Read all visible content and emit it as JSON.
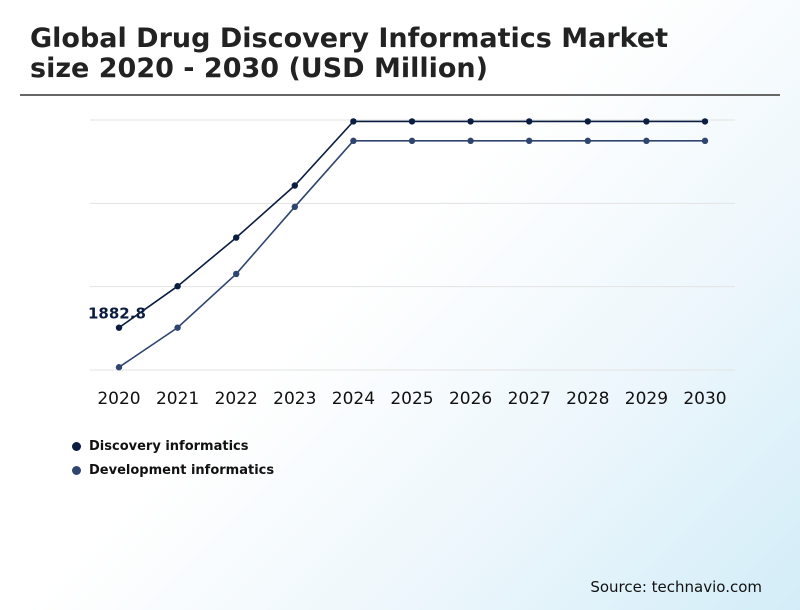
{
  "header": {
    "title_line1": "Global Drug Discovery Informatics Market",
    "title_line2": "size 2020 - 2030 (USD Million)"
  },
  "source": "Source: technavio.com",
  "chart_data": {
    "type": "line",
    "x": [
      "2020",
      "2021",
      "2022",
      "2023",
      "2024",
      "2025",
      "2026",
      "2027",
      "2028",
      "2029",
      "2030"
    ],
    "series": [
      {
        "name": "Discovery informatics",
        "color": "#0b1d40",
        "values": [
          1882.8,
          2062,
          2272,
          2497,
          2774,
          2774,
          2774,
          2774,
          2774,
          2774,
          2774
        ]
      },
      {
        "name": "Development informatics",
        "color": "#2f4570",
        "values": [
          1712,
          1883,
          2115,
          2405,
          2690,
          2690,
          2690,
          2690,
          2690,
          2690,
          2690
        ]
      }
    ],
    "annotations": [
      {
        "series": 0,
        "index": 0,
        "text": "1882.8"
      }
    ],
    "ylim": [
      1700,
      2780
    ],
    "grid": true,
    "legend": "bottom-left",
    "xlabel": "",
    "ylabel": ""
  }
}
